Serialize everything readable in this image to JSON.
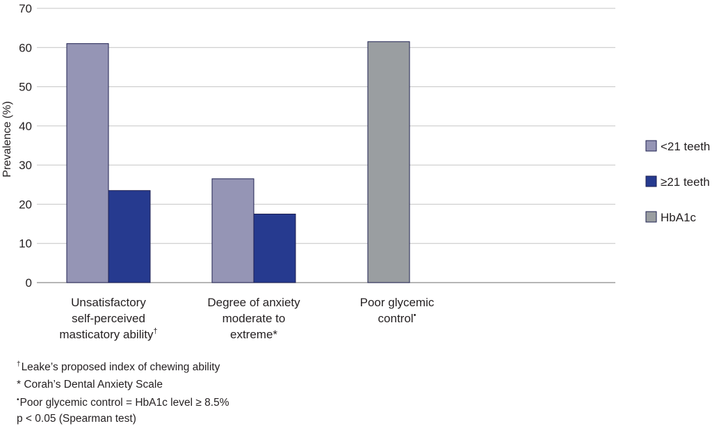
{
  "chart_data": {
    "type": "bar",
    "ylabel": "Prevalence (%)",
    "ylim": [
      0,
      70
    ],
    "yticks": [
      "0",
      "10",
      "20",
      "30",
      "40",
      "50",
      "60",
      "70"
    ],
    "grid": true,
    "legend_position": "right",
    "categories": [
      {
        "lines": [
          "Unsatisfactory",
          "self-perceived",
          "masticatory ability"
        ],
        "mark": "†"
      },
      {
        "lines": [
          "Degree of anxiety",
          "moderate to",
          "extreme*"
        ],
        "mark": ""
      },
      {
        "lines": [
          "Poor glycemic",
          "control"
        ],
        "mark": "•"
      }
    ],
    "series": [
      {
        "name": "<21 teeth",
        "color": "#9595b5",
        "values": [
          61,
          26.5,
          null
        ]
      },
      {
        "name": "≥21 teeth",
        "color": "#263a8f",
        "values": [
          23.5,
          17.5,
          null
        ]
      },
      {
        "name": "HbA1c",
        "color": "#9a9ea1",
        "values": [
          null,
          null,
          61.5
        ]
      }
    ]
  },
  "footnotes": {
    "f1_mark": "†",
    "f1_text": "Leake’s proposed index of chewing ability",
    "f2_text": "* Corah’s Dental Anxiety Scale",
    "f3_mark": "•",
    "f3_text": "Poor glycemic control = HbA1c level ≥ 8.5%",
    "f4_text": "p < 0.05 (Spearman test)"
  }
}
